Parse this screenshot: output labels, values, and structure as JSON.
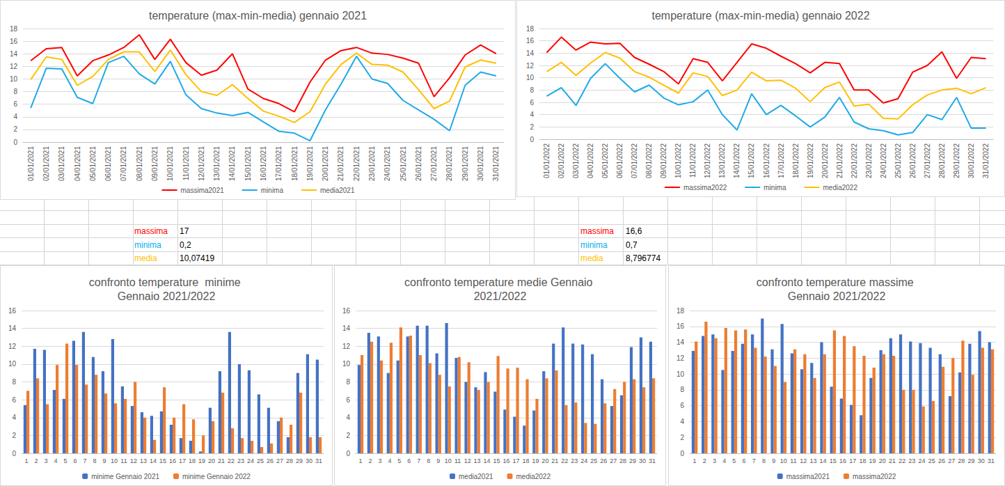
{
  "chart_data": [
    {
      "type": "line",
      "title": "temperature (max-min-media) gennaio 2021",
      "categories": [
        "01/01/2021",
        "02/01/2021",
        "03/01/2021",
        "04/01/2021",
        "05/01/2021",
        "06/01/2021",
        "07/01/2021",
        "08/01/2021",
        "09/01/2021",
        "10/01/2021",
        "11/01/2021",
        "12/01/2021",
        "13/01/2021",
        "14/01/2021",
        "15/01/2021",
        "16/01/2021",
        "17/01/2021",
        "18/01/2021",
        "19/01/2021",
        "20/01/2021",
        "21/01/2021",
        "22/01/2021",
        "23/01/2021",
        "24/01/2021",
        "25/01/2021",
        "26/01/2021",
        "27/01/2021",
        "28/01/2021",
        "29/01/2021",
        "30/01/2021",
        "31/01/2021"
      ],
      "series": [
        {
          "name": "massima2021",
          "color": "#ff0000",
          "values": [
            12.9,
            14.8,
            15.0,
            10.5,
            12.9,
            13.8,
            15.0,
            17.0,
            13.1,
            16.3,
            12.6,
            10.6,
            11.4,
            14.0,
            8.4,
            6.9,
            6.1,
            4.8,
            9.5,
            13.0,
            14.5,
            15.0,
            14.1,
            13.9,
            13.3,
            12.5,
            7.2,
            10.2,
            13.8,
            15.4,
            14.0
          ]
        },
        {
          "name": "minima",
          "color": "#1fa9e8",
          "values": [
            5.4,
            11.7,
            11.6,
            7.1,
            6.1,
            12.6,
            13.6,
            10.8,
            9.2,
            12.8,
            7.5,
            5.3,
            4.6,
            4.2,
            4.7,
            3.2,
            1.7,
            1.4,
            0.2,
            5.1,
            9.2,
            13.6,
            10.0,
            9.3,
            6.6,
            5.1,
            3.6,
            1.8,
            9.0,
            11.1,
            10.5
          ]
        },
        {
          "name": "media2021",
          "color": "#ffc000",
          "values": [
            9.9,
            13.5,
            13.1,
            9.0,
            10.4,
            13.1,
            14.3,
            14.3,
            11.2,
            14.6,
            10.7,
            8.0,
            7.4,
            9.1,
            6.9,
            4.9,
            4.1,
            3.1,
            4.8,
            9.2,
            12.3,
            14.1,
            12.3,
            12.2,
            11.1,
            8.3,
            5.3,
            6.5,
            11.9,
            13.0,
            12.5
          ]
        }
      ],
      "ylim": [
        0,
        18
      ],
      "yticks": [
        0,
        2,
        4,
        6,
        8,
        10,
        12,
        14,
        16,
        18
      ],
      "grid": true,
      "legend": "bottom"
    },
    {
      "type": "line",
      "title": "temperature (max-min-media) gennaio 2022",
      "categories": [
        "01/01/2022",
        "02/01/2022",
        "03/01/2022",
        "04/01/2022",
        "05/01/2022",
        "06/01/2022",
        "07/01/2022",
        "08/01/2022",
        "09/01/2022",
        "10/01/2022",
        "11/01/2022",
        "12/01/2022",
        "13/01/2022",
        "14/01/2022",
        "15/01/2022",
        "16/01/2022",
        "17/01/2022",
        "18/01/2022",
        "19/01/2022",
        "20/01/2022",
        "21/01/2022",
        "22/01/2022",
        "23/01/2022",
        "24/01/2022",
        "25/01/2022",
        "26/01/2022",
        "27/01/2022",
        "28/01/2022",
        "29/01/2022",
        "30/01/2022",
        "31/01/2022"
      ],
      "series": [
        {
          "name": "massima2022",
          "color": "#ff0000",
          "values": [
            14.1,
            16.6,
            14.5,
            15.8,
            15.5,
            15.6,
            13.3,
            12.2,
            11.0,
            9.0,
            13.1,
            12.5,
            9.5,
            12.5,
            15.5,
            14.8,
            13.5,
            12.3,
            10.8,
            12.5,
            12.3,
            8.0,
            8.0,
            5.9,
            6.6,
            10.9,
            12.0,
            14.2,
            9.9,
            13.3,
            13.1
          ]
        },
        {
          "name": "minima",
          "color": "#1fa9e8",
          "values": [
            7.0,
            8.4,
            5.5,
            9.9,
            12.3,
            9.9,
            7.7,
            8.8,
            6.7,
            5.6,
            6.1,
            8.0,
            4.0,
            1.5,
            7.4,
            4.0,
            5.5,
            3.8,
            2.0,
            3.6,
            6.8,
            2.8,
            1.7,
            1.4,
            0.7,
            1.1,
            4.0,
            3.2,
            6.8,
            1.8,
            1.8
          ]
        },
        {
          "name": "media2022",
          "color": "#ffc000",
          "values": [
            11.0,
            12.5,
            10.4,
            12.4,
            14.1,
            13.2,
            11.0,
            10.1,
            8.8,
            7.5,
            10.8,
            10.2,
            7.1,
            8.0,
            10.9,
            9.5,
            9.6,
            8.3,
            6.1,
            8.4,
            9.3,
            5.4,
            5.7,
            3.4,
            3.3,
            5.6,
            7.2,
            8.0,
            8.3,
            7.4,
            8.4
          ]
        }
      ],
      "ylim": [
        0,
        18
      ],
      "yticks": [
        0,
        2,
        4,
        6,
        8,
        10,
        12,
        14,
        16,
        18
      ],
      "grid": true,
      "legend": "bottom"
    },
    {
      "type": "bar",
      "title": "confronto temperature  minime Gennaio 2021/2022",
      "categories": [
        "1",
        "2",
        "3",
        "4",
        "5",
        "6",
        "7",
        "8",
        "9",
        "10",
        "11",
        "12",
        "13",
        "14",
        "15",
        "16",
        "17",
        "18",
        "19",
        "20",
        "21",
        "22",
        "23",
        "24",
        "25",
        "26",
        "27",
        "28",
        "29",
        "30",
        "31"
      ],
      "series": [
        {
          "name": "minime Gennaio 2021",
          "color": "#4472c4",
          "values": [
            5.4,
            11.7,
            11.6,
            7.1,
            6.1,
            12.6,
            13.6,
            10.8,
            9.2,
            12.8,
            7.5,
            5.3,
            4.6,
            4.2,
            4.7,
            3.2,
            1.7,
            1.4,
            0.2,
            5.1,
            9.2,
            13.6,
            10.0,
            9.3,
            6.6,
            5.1,
            3.6,
            1.8,
            9.0,
            11.1,
            10.5
          ]
        },
        {
          "name": "minime Gennaio 2022",
          "color": "#ed7d31",
          "values": [
            7.0,
            8.4,
            5.5,
            9.9,
            12.3,
            9.9,
            7.7,
            8.8,
            6.7,
            5.6,
            6.1,
            8.0,
            4.0,
            1.5,
            7.4,
            4.0,
            5.5,
            3.8,
            2.0,
            3.6,
            6.8,
            2.8,
            1.7,
            1.4,
            0.7,
            1.1,
            4.0,
            3.2,
            6.8,
            1.8,
            1.8
          ]
        }
      ],
      "ylim": [
        0,
        16
      ],
      "yticks": [
        0,
        2,
        4,
        6,
        8,
        10,
        12,
        14,
        16
      ],
      "grid": true,
      "legend": "bottom"
    },
    {
      "type": "bar",
      "title": "confronto temperature medie Gennaio 2021/2022",
      "categories": [
        "1",
        "2",
        "3",
        "4",
        "5",
        "6",
        "7",
        "8",
        "9",
        "10",
        "11",
        "12",
        "13",
        "14",
        "15",
        "16",
        "17",
        "18",
        "19",
        "20",
        "21",
        "22",
        "23",
        "24",
        "25",
        "26",
        "27",
        "28",
        "29",
        "30",
        "31"
      ],
      "series": [
        {
          "name": "media2021",
          "color": "#4472c4",
          "values": [
            9.9,
            13.5,
            13.1,
            9.0,
            10.4,
            13.1,
            14.3,
            14.3,
            11.2,
            14.6,
            10.7,
            8.0,
            7.4,
            9.1,
            6.9,
            4.9,
            4.1,
            3.1,
            4.8,
            9.2,
            12.3,
            14.1,
            12.3,
            12.2,
            11.1,
            8.3,
            5.3,
            6.5,
            11.9,
            13.0,
            12.5
          ]
        },
        {
          "name": "media2022",
          "color": "#ed7d31",
          "values": [
            11.0,
            12.5,
            10.4,
            12.4,
            14.1,
            13.2,
            11.0,
            10.1,
            8.8,
            7.5,
            10.8,
            10.2,
            7.1,
            8.0,
            10.9,
            9.5,
            9.6,
            8.3,
            6.1,
            8.4,
            9.3,
            5.4,
            5.7,
            3.4,
            3.3,
            5.6,
            7.2,
            8.0,
            8.3,
            7.4,
            8.4
          ]
        }
      ],
      "ylim": [
        0,
        16
      ],
      "yticks": [
        0,
        2,
        4,
        6,
        8,
        10,
        12,
        14,
        16
      ],
      "grid": true,
      "legend": "bottom"
    },
    {
      "type": "bar",
      "title": "confronto temperature massime Gennaio 2021/2022",
      "categories": [
        "1",
        "2",
        "3",
        "4",
        "5",
        "6",
        "7",
        "8",
        "9",
        "10",
        "11",
        "12",
        "13",
        "14",
        "15",
        "16",
        "17",
        "18",
        "19",
        "20",
        "21",
        "22",
        "23",
        "24",
        "25",
        "26",
        "27",
        "28",
        "29",
        "30",
        "31"
      ],
      "series": [
        {
          "name": "massima2021",
          "color": "#4472c4",
          "values": [
            12.9,
            14.8,
            15.0,
            10.5,
            12.9,
            13.8,
            15.0,
            17.0,
            13.1,
            16.3,
            12.6,
            10.6,
            11.4,
            14.0,
            8.4,
            6.9,
            6.1,
            4.8,
            9.5,
            13.0,
            14.5,
            15.0,
            14.1,
            13.9,
            13.3,
            12.5,
            7.2,
            10.2,
            13.8,
            15.4,
            14.0
          ]
        },
        {
          "name": "massima2022",
          "color": "#ed7d31",
          "values": [
            14.1,
            16.6,
            14.5,
            15.8,
            15.5,
            15.6,
            13.3,
            12.2,
            11.0,
            9.0,
            13.1,
            12.5,
            9.5,
            12.5,
            15.5,
            14.8,
            13.5,
            12.3,
            10.8,
            12.5,
            12.3,
            8.0,
            8.0,
            5.9,
            6.6,
            10.9,
            12.0,
            14.2,
            9.9,
            13.3,
            13.1
          ]
        }
      ],
      "ylim": [
        0,
        18
      ],
      "yticks": [
        0,
        2,
        4,
        6,
        8,
        10,
        12,
        14,
        16,
        18
      ],
      "grid": true,
      "legend": "bottom"
    }
  ],
  "tables": [
    {
      "rows": [
        [
          "massima",
          "17"
        ],
        [
          "minima",
          "0,2"
        ],
        [
          "media",
          "10,07419"
        ]
      ],
      "colors": [
        "#ff0000",
        "#00b0f0",
        "#ffc000"
      ]
    },
    {
      "rows": [
        [
          "massima",
          "16,6"
        ],
        [
          "minima",
          "0,7"
        ],
        [
          "media",
          "8,796774"
        ]
      ],
      "colors": [
        "#ff0000",
        "#00b0f0",
        "#ffc000"
      ]
    }
  ]
}
